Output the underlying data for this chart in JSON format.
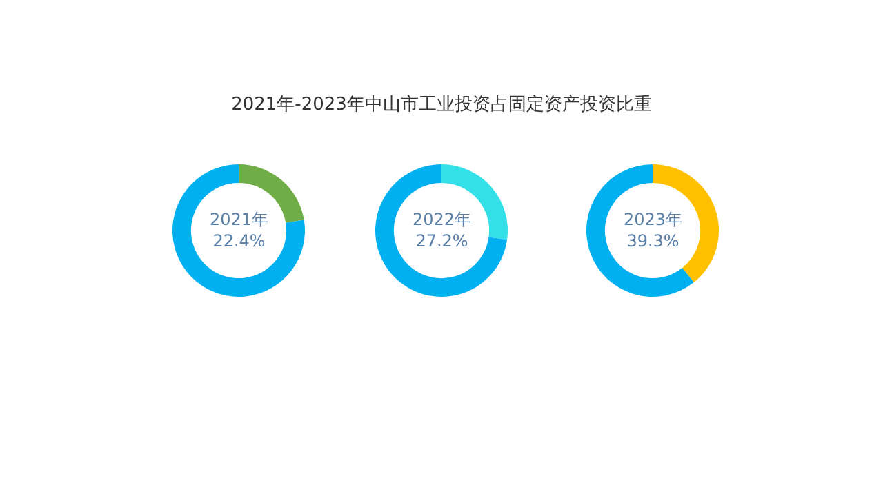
{
  "chart_data": [
    {
      "type": "donut",
      "title": "2021年-2023年中山市工业投资占固定资产投资比重",
      "categories": [
        null,
        null
      ],
      "values": [
        22.4,
        77.6
      ],
      "colors": [
        "#70ad47",
        "#00b0f0"
      ],
      "annotations": [
        "2021年",
        "22.4%"
      ]
    },
    {
      "type": "donut",
      "categories": [
        null,
        null
      ],
      "values": [
        27.2,
        72.8
      ],
      "colors": [
        "#33e0e8",
        "#00b0f0"
      ],
      "annotations": [
        "2022年",
        "27.2%"
      ]
    },
    {
      "type": "donut",
      "categories": [
        null,
        null
      ],
      "values": [
        39.3,
        60.7
      ],
      "colors": [
        "#ffc000",
        "#00b0f0"
      ],
      "annotations": [
        "2023年",
        "39.3%"
      ]
    }
  ]
}
